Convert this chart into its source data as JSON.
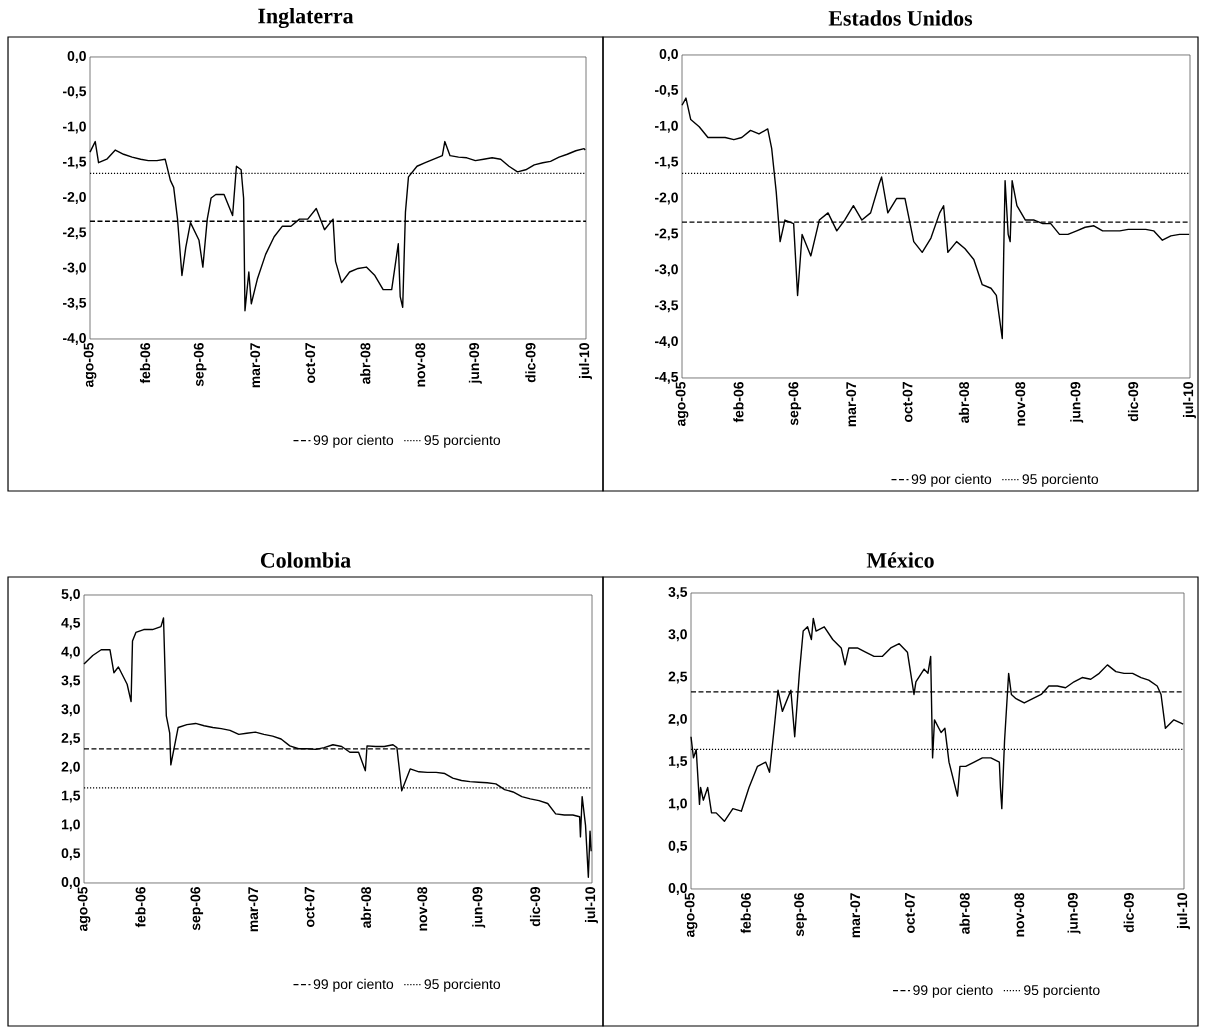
{
  "chart_data": [
    {
      "type": "line",
      "title": "Inglaterra",
      "legend": "bottom",
      "xlim": [
        "2005-08-01",
        "2010-07-08"
      ],
      "ylim": [
        -4,
        0
      ],
      "xticks": [
        {
          "value": "2005-08-01",
          "label": "ago-05"
        },
        {
          "value": "2006-02-17",
          "label": "feb-06"
        },
        {
          "value": "2006-09-05",
          "label": "sep-06"
        },
        {
          "value": "2007-03-24",
          "label": "mar-07"
        },
        {
          "value": "2007-10-10",
          "label": "oct-07"
        },
        {
          "value": "2008-04-27",
          "label": "abr-08"
        },
        {
          "value": "2008-11-13",
          "label": "nov-08"
        },
        {
          "value": "2009-06-01",
          "label": "jun-09"
        },
        {
          "value": "2009-12-18",
          "label": "dic-09"
        },
        {
          "value": "2010-07-06",
          "label": "jul-10"
        }
      ],
      "yticks": [
        {
          "value": 0,
          "label": "0,0"
        },
        {
          "value": -0.5,
          "label": "-0,5"
        },
        {
          "value": -1,
          "label": "-1,0"
        },
        {
          "value": -1.5,
          "label": "-1,5"
        },
        {
          "value": -2,
          "label": "-2,0"
        },
        {
          "value": -2.5,
          "label": "-2,5"
        },
        {
          "value": -3,
          "label": "-3,0"
        },
        {
          "value": -3.5,
          "label": "-3,5"
        },
        {
          "value": -4,
          "label": "-4,0"
        }
      ],
      "ref_lines": [
        {
          "axis": "y",
          "value": -2.33,
          "label": "99 por ciento",
          "line_style": "dashed",
          "color": "#000000"
        },
        {
          "axis": "y",
          "value": -1.65,
          "label": "95 porciento",
          "line_style": "dotted",
          "color": "#000000"
        }
      ],
      "x": [
        "2005-08-01",
        "2005-08-20",
        "2005-09-01",
        "2005-10-01",
        "2005-11-01",
        "2005-12-01",
        "2006-01-01",
        "2006-02-01",
        "2006-03-01",
        "2006-04-01",
        "2006-05-01",
        "2006-05-20",
        "2006-06-01",
        "2006-06-15",
        "2006-07-01",
        "2006-07-15",
        "2006-08-01",
        "2006-09-01",
        "2006-09-15",
        "2006-10-01",
        "2006-10-15",
        "2006-11-01",
        "2006-12-01",
        "2007-01-01",
        "2007-01-15",
        "2007-02-01",
        "2007-02-10",
        "2007-02-15",
        "2007-03-01",
        "2007-03-10",
        "2007-04-01",
        "2007-05-01",
        "2007-06-01",
        "2007-07-01",
        "2007-08-01",
        "2007-09-01",
        "2007-10-01",
        "2007-11-01",
        "2007-12-01",
        "2008-01-01",
        "2008-01-10",
        "2008-02-01",
        "2008-03-01",
        "2008-04-01",
        "2008-05-01",
        "2008-06-01",
        "2008-07-01",
        "2008-08-01",
        "2008-08-25",
        "2008-09-01",
        "2008-09-10",
        "2008-09-20",
        "2008-10-01",
        "2008-11-01",
        "2008-12-01",
        "2009-01-01",
        "2009-02-01",
        "2009-02-10",
        "2009-03-01",
        "2009-04-01",
        "2009-05-01",
        "2009-06-01",
        "2009-07-01",
        "2009-08-01",
        "2009-09-01",
        "2009-10-01",
        "2009-11-01",
        "2009-12-01",
        "2010-01-01",
        "2010-02-01",
        "2010-03-01",
        "2010-04-01",
        "2010-05-01",
        "2010-06-01",
        "2010-07-01",
        "2010-07-05"
      ],
      "series": [
        {
          "color": "#000000",
          "values": [
            -1.35,
            -1.2,
            -1.5,
            -1.45,
            -1.32,
            -1.38,
            -1.42,
            -1.45,
            -1.47,
            -1.47,
            -1.45,
            -1.75,
            -1.85,
            -2.3,
            -3.1,
            -2.7,
            -2.35,
            -2.6,
            -2.98,
            -2.3,
            -2.0,
            -1.95,
            -1.95,
            -2.25,
            -1.55,
            -1.6,
            -2.0,
            -3.6,
            -3.05,
            -3.5,
            -3.15,
            -2.8,
            -2.55,
            -2.4,
            -2.4,
            -2.3,
            -2.3,
            -2.15,
            -2.45,
            -2.3,
            -2.9,
            -3.2,
            -3.05,
            -3.0,
            -2.98,
            -3.1,
            -3.3,
            -3.3,
            -2.65,
            -3.4,
            -3.55,
            -2.2,
            -1.7,
            -1.55,
            -1.5,
            -1.45,
            -1.4,
            -1.2,
            -1.4,
            -1.42,
            -1.43,
            -1.47,
            -1.45,
            -1.43,
            -1.45,
            -1.55,
            -1.63,
            -1.6,
            -1.53,
            -1.5,
            -1.48,
            -1.42,
            -1.38,
            -1.33,
            -1.3,
            -1.32
          ]
        }
      ]
    },
    {
      "type": "line",
      "title": "Estados Unidos",
      "legend": "bottom",
      "xlim": [
        "2005-08-01",
        "2010-07-08"
      ],
      "ylim": [
        -4.5,
        0
      ],
      "xticks": [
        {
          "value": "2005-08-01",
          "label": "ago-05"
        },
        {
          "value": "2006-02-17",
          "label": "feb-06"
        },
        {
          "value": "2006-09-05",
          "label": "sep-06"
        },
        {
          "value": "2007-03-24",
          "label": "mar-07"
        },
        {
          "value": "2007-10-10",
          "label": "oct-07"
        },
        {
          "value": "2008-04-27",
          "label": "abr-08"
        },
        {
          "value": "2008-11-13",
          "label": "nov-08"
        },
        {
          "value": "2009-06-01",
          "label": "jun-09"
        },
        {
          "value": "2009-12-18",
          "label": "dic-09"
        },
        {
          "value": "2010-07-06",
          "label": "jul-10"
        }
      ],
      "yticks": [
        {
          "value": 0,
          "label": "0,0"
        },
        {
          "value": -0.5,
          "label": "-0,5"
        },
        {
          "value": -1,
          "label": "-1,0"
        },
        {
          "value": -1.5,
          "label": "-1,5"
        },
        {
          "value": -2,
          "label": "-2,0"
        },
        {
          "value": -2.5,
          "label": "-2,5"
        },
        {
          "value": -3,
          "label": "-3,0"
        },
        {
          "value": -3.5,
          "label": "-3,5"
        },
        {
          "value": -4,
          "label": "-4,0"
        },
        {
          "value": -4.5,
          "label": "-4,5"
        }
      ],
      "ref_lines": [
        {
          "axis": "y",
          "value": -2.33,
          "label": "99 por ciento",
          "line_style": "dashed",
          "color": "#000000"
        },
        {
          "axis": "y",
          "value": -1.65,
          "label": "95 porciento",
          "line_style": "dotted",
          "color": "#000000"
        }
      ],
      "x": [
        "2005-08-01",
        "2005-08-15",
        "2005-09-01",
        "2005-10-01",
        "2005-11-01",
        "2005-12-01",
        "2006-01-01",
        "2006-02-01",
        "2006-03-01",
        "2006-04-01",
        "2006-05-01",
        "2006-06-01",
        "2006-06-15",
        "2006-07-01",
        "2006-07-15",
        "2006-08-01",
        "2006-09-01",
        "2006-09-15",
        "2006-10-01",
        "2006-11-01",
        "2006-12-01",
        "2007-01-01",
        "2007-02-01",
        "2007-03-01",
        "2007-04-01",
        "2007-05-01",
        "2007-06-01",
        "2007-07-01",
        "2007-07-10",
        "2007-08-01",
        "2007-09-01",
        "2007-10-01",
        "2007-11-01",
        "2007-12-01",
        "2008-01-01",
        "2008-02-01",
        "2008-02-15",
        "2008-03-01",
        "2008-04-01",
        "2008-05-01",
        "2008-06-01",
        "2008-07-01",
        "2008-08-01",
        "2008-08-20",
        "2008-09-10",
        "2008-09-15",
        "2008-09-20",
        "2008-10-01",
        "2008-10-08",
        "2008-10-15",
        "2008-11-01",
        "2008-12-01",
        "2009-01-01",
        "2009-02-01",
        "2009-03-01",
        "2009-04-01",
        "2009-05-01",
        "2009-06-01",
        "2009-07-01",
        "2009-08-01",
        "2009-09-01",
        "2009-10-01",
        "2009-11-01",
        "2009-12-01",
        "2010-01-01",
        "2010-02-01",
        "2010-03-01",
        "2010-04-01",
        "2010-05-01",
        "2010-06-01",
        "2010-07-05"
      ],
      "series": [
        {
          "color": "#000000",
          "values": [
            -0.7,
            -0.6,
            -0.9,
            -1.0,
            -1.15,
            -1.15,
            -1.15,
            -1.18,
            -1.15,
            -1.05,
            -1.1,
            -1.03,
            -1.3,
            -1.9,
            -2.6,
            -2.3,
            -2.35,
            -3.35,
            -2.5,
            -2.8,
            -2.3,
            -2.2,
            -2.45,
            -2.3,
            -2.1,
            -2.3,
            -2.2,
            -1.8,
            -1.7,
            -2.2,
            -2.0,
            -2.0,
            -2.6,
            -2.75,
            -2.55,
            -2.2,
            -2.1,
            -2.75,
            -2.6,
            -2.7,
            -2.85,
            -3.2,
            -3.25,
            -3.35,
            -3.95,
            -2.8,
            -1.75,
            -2.5,
            -2.6,
            -1.75,
            -2.1,
            -2.3,
            -2.3,
            -2.35,
            -2.35,
            -2.5,
            -2.5,
            -2.45,
            -2.4,
            -2.38,
            -2.45,
            -2.45,
            -2.45,
            -2.43,
            -2.43,
            -2.43,
            -2.45,
            -2.58,
            -2.52,
            -2.5,
            -2.5
          ]
        }
      ]
    },
    {
      "type": "line",
      "title": "Colombia",
      "legend": "bottom",
      "xlim": [
        "2005-08-01",
        "2010-07-08"
      ],
      "ylim": [
        0,
        5
      ],
      "xticks": [
        {
          "value": "2005-08-01",
          "label": "ago-05"
        },
        {
          "value": "2006-02-17",
          "label": "feb-06"
        },
        {
          "value": "2006-09-05",
          "label": "sep-06"
        },
        {
          "value": "2007-03-24",
          "label": "mar-07"
        },
        {
          "value": "2007-10-10",
          "label": "oct-07"
        },
        {
          "value": "2008-04-27",
          "label": "abr-08"
        },
        {
          "value": "2008-11-13",
          "label": "nov-08"
        },
        {
          "value": "2009-06-01",
          "label": "jun-09"
        },
        {
          "value": "2009-12-18",
          "label": "dic-09"
        },
        {
          "value": "2010-07-06",
          "label": "jul-10"
        }
      ],
      "yticks": [
        {
          "value": 5,
          "label": "5,0"
        },
        {
          "value": 4.5,
          "label": "4,5"
        },
        {
          "value": 4,
          "label": "4,0"
        },
        {
          "value": 3.5,
          "label": "3,5"
        },
        {
          "value": 3,
          "label": "3,0"
        },
        {
          "value": 2.5,
          "label": "2,5"
        },
        {
          "value": 2,
          "label": "2,0"
        },
        {
          "value": 1.5,
          "label": "1,5"
        },
        {
          "value": 1,
          "label": "1,0"
        },
        {
          "value": 0.5,
          "label": "0,5"
        },
        {
          "value": 0,
          "label": "0,0"
        }
      ],
      "ref_lines": [
        {
          "axis": "y",
          "value": 2.33,
          "label": "99 por ciento",
          "line_style": "dashed",
          "color": "#000000"
        },
        {
          "axis": "y",
          "value": 1.65,
          "label": "95 porciento",
          "line_style": "dotted",
          "color": "#000000"
        }
      ],
      "x": [
        "2005-08-01",
        "2005-09-01",
        "2005-10-01",
        "2005-11-01",
        "2005-11-15",
        "2005-12-01",
        "2006-01-01",
        "2006-01-15",
        "2006-01-20",
        "2006-02-01",
        "2006-03-01",
        "2006-04-01",
        "2006-05-01",
        "2006-05-10",
        "2006-05-20",
        "2006-06-01",
        "2006-06-05",
        "2006-07-01",
        "2006-08-01",
        "2006-09-01",
        "2006-10-01",
        "2006-11-01",
        "2006-12-01",
        "2007-01-01",
        "2007-02-01",
        "2007-03-01",
        "2007-04-01",
        "2007-05-01",
        "2007-06-01",
        "2007-07-01",
        "2007-08-01",
        "2007-09-01",
        "2007-10-01",
        "2007-11-01",
        "2007-12-01",
        "2008-01-01",
        "2008-02-01",
        "2008-03-01",
        "2008-04-01",
        "2008-04-25",
        "2008-05-01",
        "2008-06-01",
        "2008-07-01",
        "2008-08-01",
        "2008-08-15",
        "2008-09-01",
        "2008-10-01",
        "2008-11-01",
        "2008-12-01",
        "2009-01-01",
        "2009-02-01",
        "2009-03-01",
        "2009-04-01",
        "2009-05-01",
        "2009-06-01",
        "2009-07-01",
        "2009-08-01",
        "2009-09-01",
        "2009-10-01",
        "2009-11-01",
        "2009-12-01",
        "2010-01-01",
        "2010-02-01",
        "2010-03-01",
        "2010-04-01",
        "2010-05-01",
        "2010-05-25",
        "2010-05-28",
        "2010-06-03",
        "2010-06-15",
        "2010-06-25",
        "2010-07-01",
        "2010-07-05"
      ],
      "series": [
        {
          "color": "#000000",
          "values": [
            3.8,
            3.95,
            4.05,
            4.05,
            3.65,
            3.75,
            3.45,
            3.15,
            4.2,
            4.35,
            4.4,
            4.4,
            4.45,
            4.6,
            2.9,
            2.6,
            2.05,
            2.7,
            2.75,
            2.77,
            2.73,
            2.7,
            2.68,
            2.65,
            2.58,
            2.6,
            2.62,
            2.58,
            2.55,
            2.5,
            2.38,
            2.33,
            2.33,
            2.32,
            2.35,
            2.4,
            2.37,
            2.27,
            2.27,
            1.95,
            2.38,
            2.37,
            2.37,
            2.4,
            2.35,
            1.6,
            1.98,
            1.93,
            1.92,
            1.92,
            1.9,
            1.82,
            1.78,
            1.76,
            1.75,
            1.74,
            1.72,
            1.62,
            1.58,
            1.5,
            1.46,
            1.43,
            1.38,
            1.2,
            1.18,
            1.18,
            1.15,
            0.8,
            1.5,
            1.0,
            0.1,
            0.9,
            0.55
          ]
        }
      ]
    },
    {
      "type": "line",
      "title": "México",
      "legend": "bottom",
      "xlim": [
        "2005-08-01",
        "2010-07-08"
      ],
      "ylim": [
        0,
        3.5
      ],
      "xticks": [
        {
          "value": "2005-08-01",
          "label": "ago-05"
        },
        {
          "value": "2006-02-17",
          "label": "feb-06"
        },
        {
          "value": "2006-09-05",
          "label": "sep-06"
        },
        {
          "value": "2007-03-24",
          "label": "mar-07"
        },
        {
          "value": "2007-10-10",
          "label": "oct-07"
        },
        {
          "value": "2008-04-27",
          "label": "abr-08"
        },
        {
          "value": "2008-11-13",
          "label": "nov-08"
        },
        {
          "value": "2009-06-01",
          "label": "jun-09"
        },
        {
          "value": "2009-12-18",
          "label": "dic-09"
        },
        {
          "value": "2010-07-06",
          "label": "jul-10"
        }
      ],
      "yticks": [
        {
          "value": 3.5,
          "label": "3,5"
        },
        {
          "value": 3,
          "label": "3,0"
        },
        {
          "value": 2.5,
          "label": "2,5"
        },
        {
          "value": 2,
          "label": "2,0"
        },
        {
          "value": 1.5,
          "label": "1,5"
        },
        {
          "value": 1,
          "label": "1,0"
        },
        {
          "value": 0.5,
          "label": "0,5"
        },
        {
          "value": 0,
          "label": "0,0"
        }
      ],
      "ref_lines": [
        {
          "axis": "y",
          "value": 2.33,
          "label": "99 por ciento",
          "line_style": "dashed",
          "color": "#000000"
        },
        {
          "axis": "y",
          "value": 1.65,
          "label": "95 porciento",
          "line_style": "dotted",
          "color": "#000000"
        }
      ],
      "x": [
        "2005-08-01",
        "2005-08-10",
        "2005-08-20",
        "2005-09-01",
        "2005-09-05",
        "2005-09-15",
        "2005-10-01",
        "2005-10-15",
        "2005-11-01",
        "2005-12-01",
        "2006-01-01",
        "2006-02-01",
        "2006-03-01",
        "2006-04-01",
        "2006-05-01",
        "2006-05-15",
        "2006-06-01",
        "2006-06-15",
        "2006-07-01",
        "2006-08-01",
        "2006-08-15",
        "2006-09-01",
        "2006-09-15",
        "2006-10-01",
        "2006-10-15",
        "2006-10-22",
        "2006-11-01",
        "2006-12-01",
        "2007-01-01",
        "2007-02-01",
        "2007-02-15",
        "2007-03-01",
        "2007-04-01",
        "2007-05-01",
        "2007-06-01",
        "2007-07-01",
        "2007-08-01",
        "2007-09-01",
        "2007-10-01",
        "2007-10-25",
        "2007-11-01",
        "2007-12-01",
        "2007-12-15",
        "2007-12-25",
        "2008-01-01",
        "2008-01-08",
        "2008-02-01",
        "2008-02-15",
        "2008-03-01",
        "2008-04-01",
        "2008-04-10",
        "2008-05-01",
        "2008-06-01",
        "2008-07-01",
        "2008-08-01",
        "2008-09-01",
        "2008-09-05",
        "2008-09-10",
        "2008-09-20",
        "2008-10-05",
        "2008-10-15",
        "2008-11-01",
        "2008-12-01",
        "2009-01-01",
        "2009-02-01",
        "2009-03-01",
        "2009-04-01",
        "2009-05-01",
        "2009-06-01",
        "2009-07-01",
        "2009-08-01",
        "2009-09-01",
        "2009-10-01",
        "2009-11-01",
        "2009-12-01",
        "2010-01-01",
        "2010-02-01",
        "2010-03-01",
        "2010-04-01",
        "2010-04-15",
        "2010-05-01",
        "2010-06-01",
        "2010-07-05"
      ],
      "series": [
        {
          "color": "#000000",
          "values": [
            1.8,
            1.55,
            1.65,
            1.0,
            1.2,
            1.05,
            1.2,
            0.9,
            0.9,
            0.8,
            0.95,
            0.92,
            1.2,
            1.45,
            1.5,
            1.38,
            1.9,
            2.35,
            2.1,
            2.35,
            1.8,
            2.55,
            3.05,
            3.1,
            2.95,
            3.2,
            3.05,
            3.1,
            2.95,
            2.85,
            2.65,
            2.85,
            2.85,
            2.8,
            2.75,
            2.75,
            2.85,
            2.9,
            2.8,
            2.3,
            2.45,
            2.6,
            2.55,
            2.75,
            1.55,
            2.0,
            1.85,
            1.9,
            1.5,
            1.1,
            1.45,
            1.45,
            1.5,
            1.55,
            1.55,
            1.5,
            1.2,
            0.95,
            1.75,
            2.55,
            2.3,
            2.25,
            2.2,
            2.25,
            2.3,
            2.4,
            2.4,
            2.38,
            2.45,
            2.5,
            2.48,
            2.55,
            2.65,
            2.57,
            2.55,
            2.55,
            2.5,
            2.47,
            2.4,
            2.3,
            1.9,
            2.0,
            1.95
          ]
        }
      ]
    }
  ]
}
